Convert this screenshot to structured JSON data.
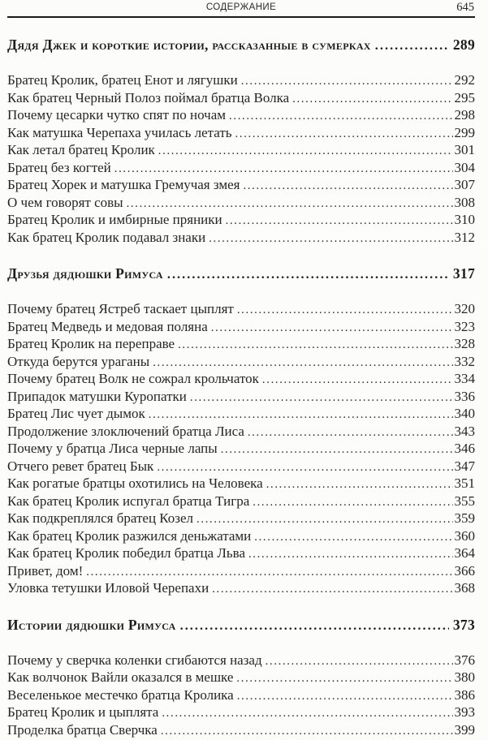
{
  "header": {
    "running_title": "СОДЕРЖАНИЕ",
    "page_number": "645"
  },
  "sections": [
    {
      "heading": {
        "title": "Дядя Джек и короткие истории, рассказанные в сумерках",
        "page": "289"
      },
      "entries": [
        {
          "title": "Братец Кролик, братец Енот и лягушки",
          "page": "292"
        },
        {
          "title": "Как братец Черный Полоз поймал братца Волка",
          "page": "295"
        },
        {
          "title": "Почему цесарки чутко спят по ночам",
          "page": "298"
        },
        {
          "title": "Как матушка Черепаха училась летать",
          "page": "299"
        },
        {
          "title": "Как летал братец Кролик",
          "page": "301"
        },
        {
          "title": "Братец без когтей",
          "page": "304"
        },
        {
          "title": "Братец Хорек и матушка Гремучая змея",
          "page": "307"
        },
        {
          "title": "О чем говорят совы",
          "page": "308"
        },
        {
          "title": "Братец Кролик и имбирные пряники",
          "page": "310"
        },
        {
          "title": "Как братец Кролик подавал знаки",
          "page": "312"
        }
      ]
    },
    {
      "heading": {
        "title": "Друзья дядюшки Римуса",
        "page": "317"
      },
      "entries": [
        {
          "title": "Почему братец Ястреб таскает цыплят",
          "page": "320"
        },
        {
          "title": "Братец Медведь и медовая поляна",
          "page": "323"
        },
        {
          "title": "Братец Кролик на переправе",
          "page": "328"
        },
        {
          "title": "Откуда берутся ураганы",
          "page": "332"
        },
        {
          "title": "Почему братец Волк не сожрал крольчаток",
          "page": "334"
        },
        {
          "title": "Припадок матушки Куропатки",
          "page": "336"
        },
        {
          "title": "Братец Лис чует дымок",
          "page": "340"
        },
        {
          "title": "Продолжение злоключений братца Лиса",
          "page": "343"
        },
        {
          "title": "Почему у братца Лиса черные лапы",
          "page": "346"
        },
        {
          "title": "Отчего ревет братец Бык",
          "page": "347"
        },
        {
          "title": "Как рогатые братцы охотились на Человека",
          "page": "351"
        },
        {
          "title": "Как братец Кролик испугал братца Тигра",
          "page": "355"
        },
        {
          "title": "Как подкреплялся братец Козел",
          "page": "359"
        },
        {
          "title": "Как братец Кролик разжился деньжатами",
          "page": "360"
        },
        {
          "title": "Как братец Кролик победил братца Льва",
          "page": "364"
        },
        {
          "title": "Привет, дом!",
          "page": "366"
        },
        {
          "title": "Уловка тетушки Иловой Черепахи",
          "page": "368"
        }
      ]
    },
    {
      "heading": {
        "title": "Истории дядюшки Римуса",
        "page": "373"
      },
      "entries": [
        {
          "title": "Почему у сверчка коленки сгибаются назад",
          "page": "376"
        },
        {
          "title": "Как волчонок Вайли оказался в мешке",
          "page": "380"
        },
        {
          "title": "Веселенькое местечко братца Кролика",
          "page": "386"
        },
        {
          "title": "Братец Кролик и цыплята",
          "page": "393"
        },
        {
          "title": "Проделка братца Сверчка",
          "page": "399"
        }
      ]
    }
  ]
}
